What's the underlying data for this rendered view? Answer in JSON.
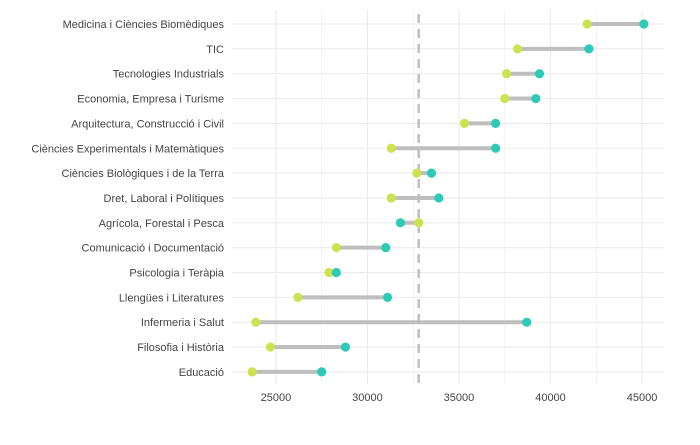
{
  "chart_data": {
    "type": "dumbbell",
    "title": "",
    "xlabel": "",
    "ylabel": "",
    "xlim": [
      22600,
      46200
    ],
    "xticks": [
      25000,
      30000,
      35000,
      40000,
      45000
    ],
    "reference_line": 32800,
    "grid": true,
    "colors": {
      "start": "#CDE24F",
      "end": "#2CCBB7",
      "segment": "#BEBEBE",
      "reference": "#BEBEBE",
      "grid": "#EBEBEB"
    },
    "categories": [
      "Medicina i Ciències Biomèdiques",
      "TIC",
      "Tecnologies Industrials",
      "Economia, Empresa i Turisme",
      "Arquitectura, Construcció i Civil",
      "Ciències Experimentals i Matemàtiques",
      "Ciències Biològiques i de la Terra",
      "Dret, Laboral i Polítiques",
      "Agrícola, Forestal i Pesca",
      "Comunicació i Documentació",
      "Psicologia i Teràpia",
      "Llengües i Literatures",
      "Infermeria i Salut",
      "Filosofia i Història",
      "Educació"
    ],
    "start_values": [
      42000,
      38200,
      37600,
      37500,
      35300,
      31300,
      32700,
      31300,
      32800,
      28300,
      27900,
      26200,
      23900,
      24700,
      23700
    ],
    "end_values": [
      45100,
      42100,
      39400,
      39200,
      37000,
      37000,
      33500,
      33900,
      31800,
      31000,
      28300,
      31100,
      38700,
      28800,
      27500
    ]
  }
}
